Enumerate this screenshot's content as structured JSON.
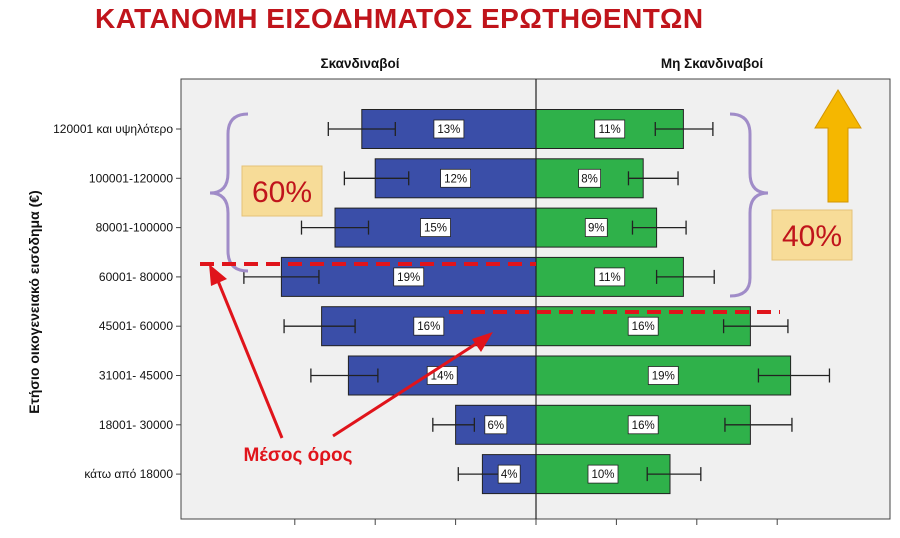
{
  "chart_data": {
    "type": "bar",
    "title": "ΚΑΤΑΝΟΜΗ ΕΙΣΟΔΗΜΑΤΟΣ ΕΡΩΤΗΘΕΝΤΩΝ",
    "ylabel": "Ετήσιο οικογενειακό εισόδημα (€)",
    "categories": [
      "120001 και υψηλότερο",
      "100001-120000",
      "80001-100000",
      "60001- 80000",
      "45001- 60000",
      "31001- 45000",
      "18001- 30000",
      "κάτω από 18000"
    ],
    "series": [
      {
        "name": "Σκανδιναβοί",
        "color": "#3a4ea8",
        "values": [
          13,
          12,
          15,
          19,
          16,
          14,
          6,
          4
        ],
        "labels": [
          "13%",
          "12%",
          "15%",
          "19%",
          "16%",
          "14%",
          "6%",
          "4%"
        ]
      },
      {
        "name": "Μη Σκανδιναβοί",
        "color": "#2fb14a",
        "values": [
          11,
          8,
          9,
          11,
          16,
          19,
          16,
          10
        ],
        "labels": [
          "11%",
          "8%",
          "9%",
          "11%",
          "16%",
          "19%",
          "16%",
          "10%"
        ]
      }
    ],
    "error_bars": {
      "Σκανδιναβοί": [
        [
          10.5,
          15.5
        ],
        [
          9.5,
          14.3
        ],
        [
          12.5,
          17.5
        ],
        [
          16.2,
          21.8
        ],
        [
          13.5,
          18.8
        ],
        [
          11.8,
          16.8
        ],
        [
          4.6,
          7.7
        ],
        [
          2.8,
          5.8
        ]
      ],
      "Μη Σκανδιναβοί": [
        [
          8.9,
          13.2
        ],
        [
          6.9,
          10.6
        ],
        [
          7.2,
          11.2
        ],
        [
          9.0,
          13.3
        ],
        [
          14.0,
          18.8
        ],
        [
          16.6,
          21.9
        ],
        [
          14.1,
          19.1
        ],
        [
          8.3,
          12.3
        ]
      ]
    },
    "annotations": {
      "left_share": "60%",
      "right_share": "40%",
      "mean_label": "Μέσος όρος",
      "mean_scandinavian_category": "60001- 80000",
      "mean_non_scandinavian_category": "45001- 60000"
    }
  },
  "colors": {
    "title": "#c0141b",
    "scandinavian": "#3a4ea8",
    "non_scandinavian": "#2fb14a",
    "annotation_red": "#e0141b",
    "brace": "#a08cc8",
    "arrow_gold": "#f5b700"
  }
}
